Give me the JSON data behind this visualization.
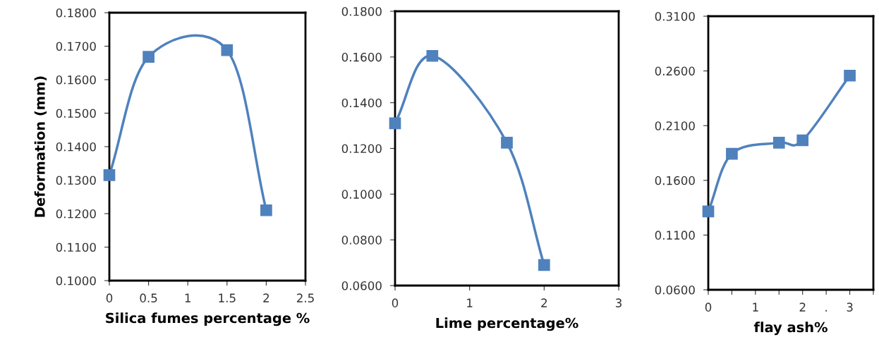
{
  "chart_data": [
    {
      "type": "line",
      "xlabel": "Silica fumes percentage %",
      "ylabel": "Deformation (mm)",
      "marker": "square",
      "line_style": "solid",
      "grid": false,
      "legend": false,
      "x": [
        0,
        0.5,
        1.5,
        2
      ],
      "series": [
        {
          "color": "#4f81bd",
          "values": [
            0.1315,
            0.1668,
            0.1688,
            0.121
          ]
        }
      ],
      "xlim": [
        0,
        2.5
      ],
      "xticks": [
        0,
        0.5,
        1,
        1.5,
        2,
        2.5
      ],
      "ylim": [
        0.1,
        0.18
      ],
      "yticks": [
        {
          "value": 0.1,
          "label": "0.1000"
        },
        {
          "value": 0.11,
          "label": "0.1100"
        },
        {
          "value": 0.12,
          "label": "0.1200"
        },
        {
          "value": 0.13,
          "label": "0.1300"
        },
        {
          "value": 0.14,
          "label": "0.1400"
        },
        {
          "value": 0.15,
          "label": "0.1500"
        },
        {
          "value": 0.16,
          "label": "0.1600"
        },
        {
          "value": 0.17,
          "label": "0.1700"
        },
        {
          "value": 0.18,
          "label": "0.1800"
        }
      ]
    },
    {
      "type": "line",
      "xlabel": "Lime percentage%",
      "marker": "square",
      "line_style": "solid",
      "grid": false,
      "legend": false,
      "x": [
        0,
        0.5,
        1.5,
        2
      ],
      "series": [
        {
          "color": "#4f81bd",
          "values": [
            0.131,
            0.1605,
            0.1225,
            0.069
          ]
        }
      ],
      "xlim": [
        0,
        3
      ],
      "xticks": [
        0,
        1,
        2,
        3
      ],
      "ylim": [
        0.06,
        0.18
      ],
      "yticks": [
        {
          "value": 0.06,
          "label": "0.0600"
        },
        {
          "value": 0.08,
          "label": "0.0800"
        },
        {
          "value": 0.1,
          "label": "0.1000"
        },
        {
          "value": 0.12,
          "label": "0.1200"
        },
        {
          "value": 0.14,
          "label": "0.1400"
        },
        {
          "value": 0.16,
          "label": "0.1600"
        },
        {
          "value": 0.18,
          "label": "0.1800"
        }
      ]
    },
    {
      "type": "line",
      "xlabel": "flay ash%",
      "marker": "square",
      "line_style": "solid",
      "grid": false,
      "legend": false,
      "x": [
        0,
        0.5,
        1.5,
        2,
        3
      ],
      "series": [
        {
          "color": "#4f81bd",
          "values": [
            0.1316,
            0.1843,
            0.1944,
            0.1966,
            0.2557
          ]
        }
      ],
      "xlim": [
        0,
        3.5
      ],
      "xticks": [
        0,
        {
          "value": 0.5,
          "label": null
        },
        1,
        {
          "value": 1.5,
          "label": null
        },
        2,
        {
          "value": 2.5,
          "label": "."
        },
        3,
        {
          "value": 3.5,
          "label": null
        }
      ],
      "ylim": [
        0.06,
        0.31
      ],
      "yticks": [
        {
          "value": 0.06,
          "label": "0.0600"
        },
        {
          "value": 0.11,
          "label": "0.1100"
        },
        {
          "value": 0.16,
          "label": "0.1600"
        },
        {
          "value": 0.21,
          "label": "0.2100"
        },
        {
          "value": 0.26,
          "label": "0.2600"
        },
        {
          "value": 0.31,
          "label": "0.3100"
        }
      ]
    }
  ]
}
